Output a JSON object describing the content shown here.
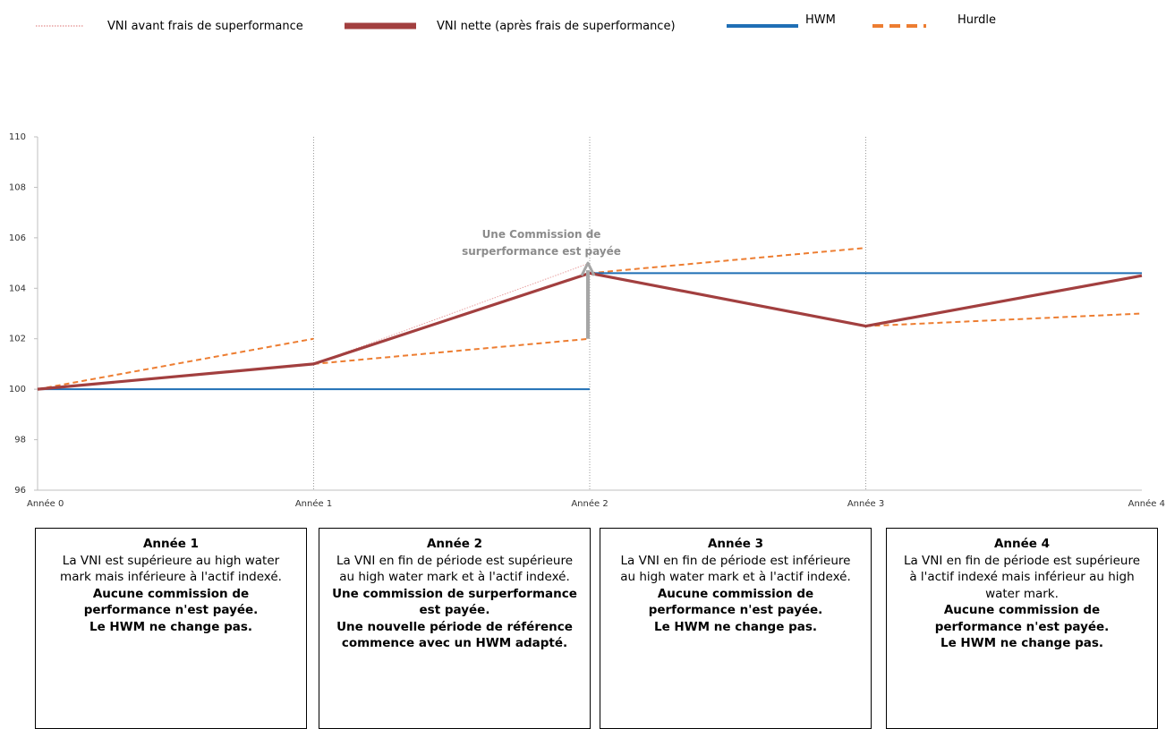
{
  "chart_data": {
    "type": "line",
    "x": [
      "Année 0",
      "Année 1",
      "Année 2",
      "Année 3",
      "Année 4"
    ],
    "ylim": [
      96,
      110
    ],
    "yticks": [
      96,
      98,
      100,
      102,
      104,
      106,
      108,
      110
    ],
    "grid": "vertical dotted lines at Année 1, Année 2, Année 3",
    "legend_position": "top",
    "series": [
      {
        "name": "VNI avant frais de superformance",
        "style": "dotted",
        "color": "#e8a0a0",
        "points": [
          [
            0,
            100
          ],
          [
            1,
            101
          ],
          [
            2,
            105
          ]
        ]
      },
      {
        "name": "VNI nette (après frais de superformance)",
        "style": "solid-thick",
        "color": "#a23f3f",
        "points": [
          [
            0,
            100
          ],
          [
            1,
            101
          ],
          [
            2,
            104.6
          ],
          [
            3,
            102.5
          ],
          [
            4,
            104.5
          ]
        ]
      },
      {
        "name": "HWM",
        "style": "solid",
        "color": "#1f6fb5",
        "segments": [
          [
            [
              0,
              100
            ],
            [
              2,
              100
            ]
          ],
          [
            [
              2,
              104.6
            ],
            [
              4,
              104.6
            ]
          ]
        ]
      },
      {
        "name": "Hurdle",
        "style": "dashed",
        "color": "#ed7d31",
        "segments": [
          [
            [
              0,
              100
            ],
            [
              1,
              102
            ]
          ],
          [
            [
              1,
              101
            ],
            [
              2,
              102
            ]
          ],
          [
            [
              2,
              104.6
            ],
            [
              3,
              105.6
            ]
          ],
          [
            [
              3,
              102.5
            ],
            [
              4,
              103
            ]
          ]
        ]
      }
    ],
    "arrow": {
      "x": 2,
      "from": 102,
      "to": 105,
      "color": "#a6a6a6"
    },
    "annotation": {
      "lines": [
        "Une Commission de",
        "surperformance est payée"
      ],
      "x": 2,
      "y": 106
    }
  },
  "boxes": [
    {
      "title": "Année 1",
      "desc": "La VNI est supérieure au high water mark mais inférieure à l'actif indexé.",
      "bold": [
        "Aucune commission de performance n'est payée.",
        "Le HWM ne change pas."
      ]
    },
    {
      "title": "Année 2",
      "desc": "La VNI en fin de période est supérieure au high water mark et à l'actif indexé.",
      "bold": [
        "Une commission de surperformance est payée.",
        "Une nouvelle période de référence commence avec un HWM adapté."
      ]
    },
    {
      "title": "Année 3",
      "desc": "La VNI en fin de période est inférieure au high water mark et à l'actif indexé.",
      "bold": [
        "Aucune commission de performance n'est payée.",
        "Le HWM ne change pas."
      ]
    },
    {
      "title": "Année 4",
      "desc": "La VNI en fin de période est supérieure à l'actif indexé mais inférieur au  high water mark.",
      "bold": [
        "Aucune commission de performance n'est payée.",
        "Le HWM ne change pas."
      ]
    }
  ]
}
